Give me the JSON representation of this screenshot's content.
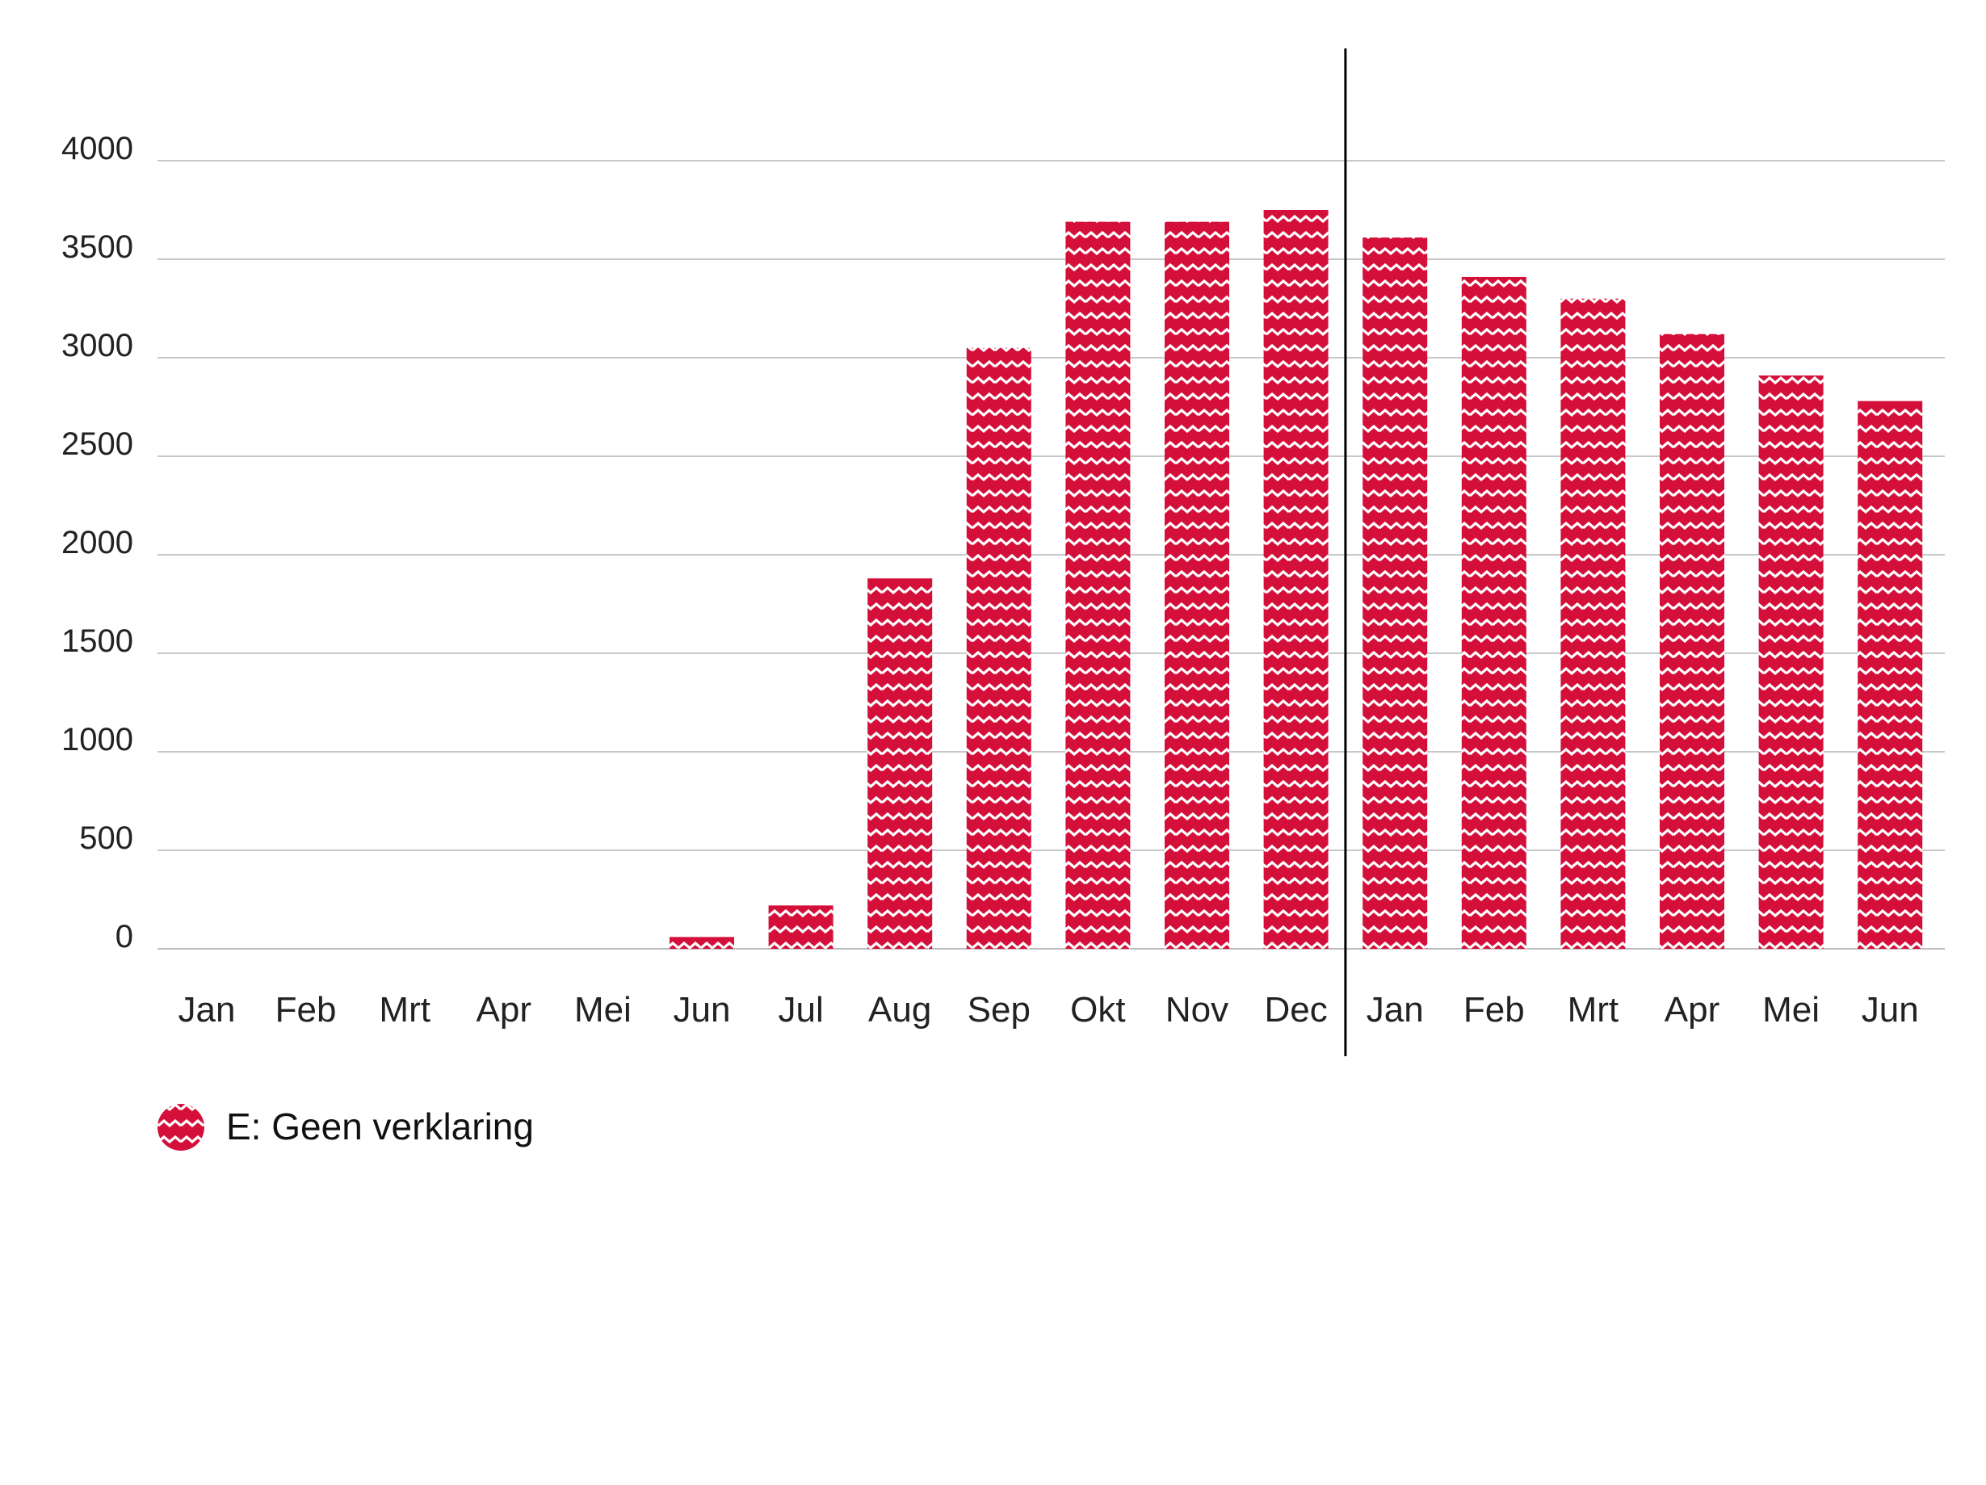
{
  "chart_data": {
    "type": "bar",
    "categories": [
      "Jan",
      "Feb",
      "Mrt",
      "Apr",
      "Mei",
      "Jun",
      "Jul",
      "Aug",
      "Sep",
      "Okt",
      "Nov",
      "Dec",
      "Jan",
      "Feb",
      "Mrt",
      "Apr",
      "Mei",
      "Jun"
    ],
    "series": [
      {
        "name": "E: Geen verklaring",
        "values": [
          0,
          0,
          0,
          0,
          0,
          60,
          220,
          1880,
          3050,
          3690,
          3690,
          3750,
          3610,
          3410,
          3300,
          3120,
          2910,
          2780
        ],
        "color": "#d4103a",
        "pattern": "zigzag"
      }
    ],
    "yticks": [
      0,
      500,
      1000,
      1500,
      2000,
      2500,
      3000,
      3500,
      4000
    ],
    "ylim": [
      0,
      4000
    ],
    "grid": true,
    "legend": {
      "position": "bottom-left",
      "label": "E: Geen verklaring"
    },
    "divider_after_category_index": 11,
    "title": "",
    "xlabel": "",
    "ylabel": ""
  }
}
